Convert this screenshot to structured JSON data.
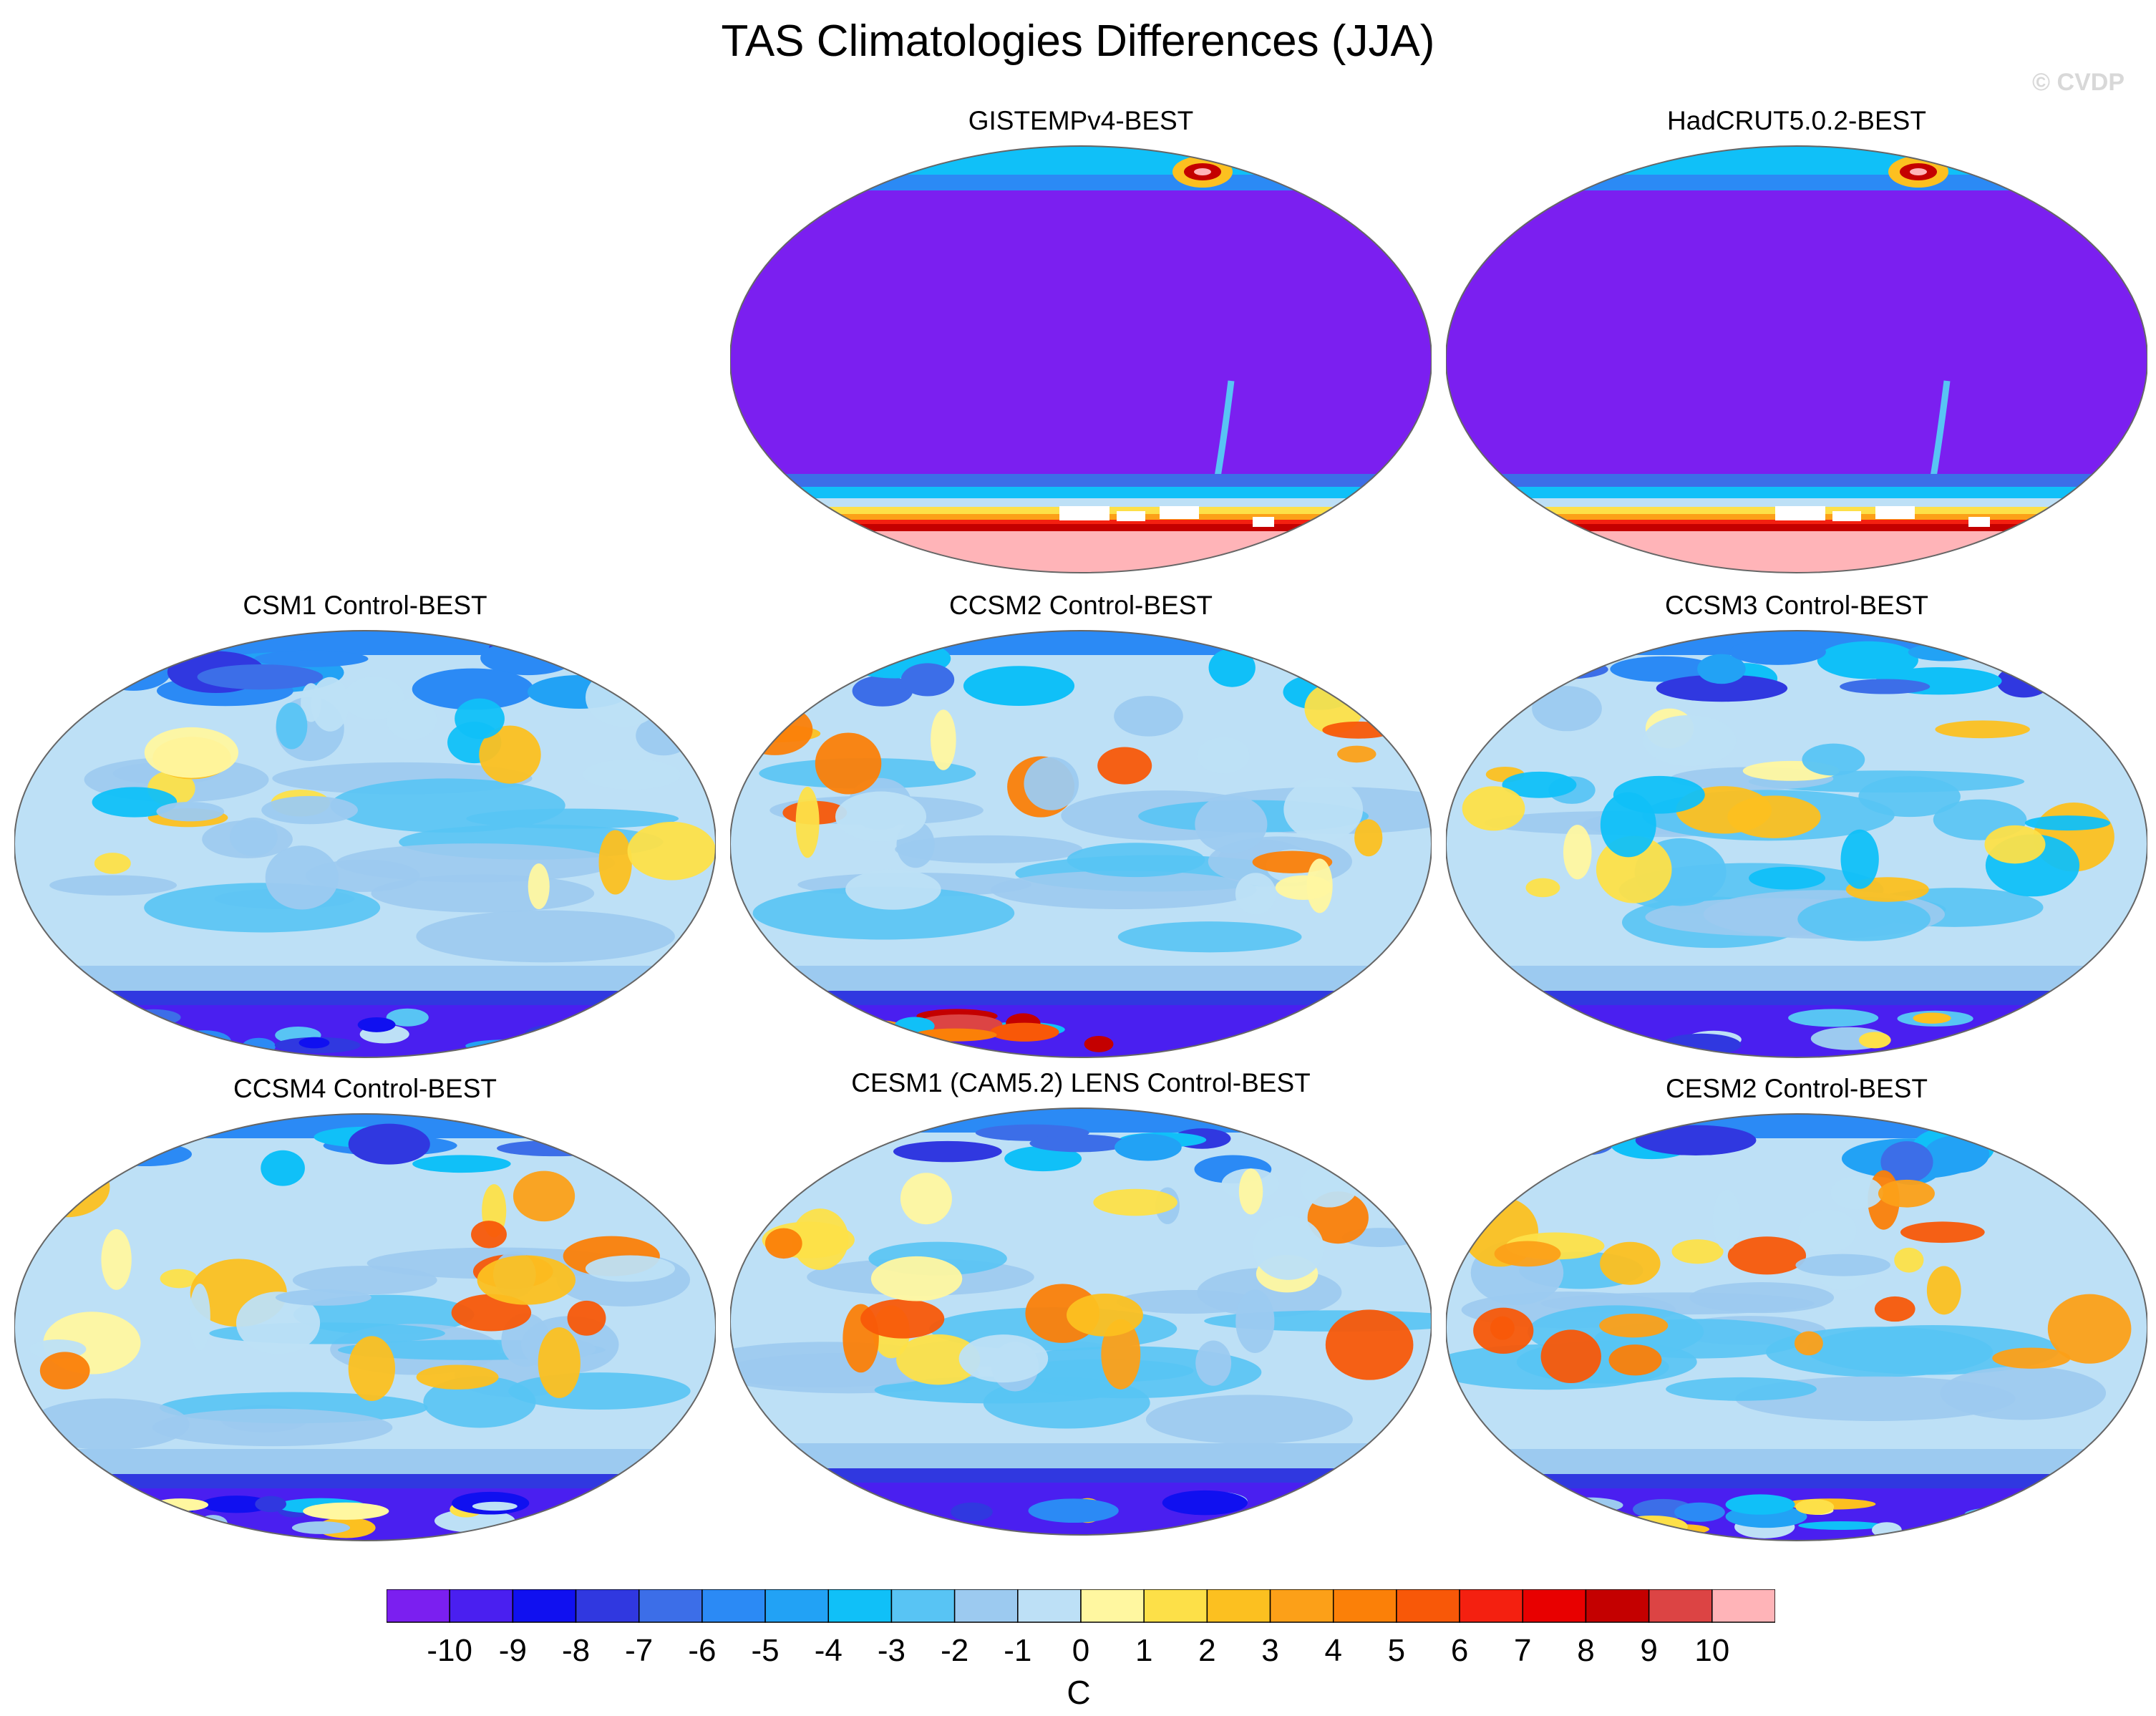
{
  "figure": {
    "title": "TAS Climatologies Differences (JJA)",
    "watermark": "© CVDP"
  },
  "chart_data": {
    "type": "heatmap",
    "title": "TAS Climatologies Differences (JJA)",
    "variable": "TAS",
    "season": "JJA",
    "units": "C",
    "projection": "Robinson global map",
    "colorbar": {
      "label": "C",
      "levels": [
        -10,
        -9,
        -8,
        -7,
        -6,
        -5,
        -4,
        -3,
        -2,
        -1,
        0,
        1,
        2,
        3,
        4,
        5,
        6,
        7,
        8,
        9,
        10
      ],
      "tick_labels": [
        "-10",
        "-9",
        "-8",
        "-7",
        "-6",
        "-5",
        "-4",
        "-3",
        "-2",
        "-1",
        "0",
        "1",
        "2",
        "3",
        "4",
        "5",
        "6",
        "7",
        "8",
        "9",
        "10"
      ],
      "colors": [
        "#7b1ff0",
        "#4a1ff0",
        "#1010f0",
        "#3038e0",
        "#3c6ee8",
        "#2b8af5",
        "#22a2f5",
        "#10c0f8",
        "#58c4f4",
        "#9ccaf0",
        "#bde0f6",
        "#fff7a0",
        "#fde048",
        "#fcc020",
        "#fca018",
        "#fb8008",
        "#f85808",
        "#f42010",
        "#e80000",
        "#c40000",
        "#dc4444",
        "#ffb4b8"
      ]
    },
    "panels": [
      {
        "id": "gistemp",
        "title": "GISTEMPv4-BEST",
        "pattern": "obs"
      },
      {
        "id": "hadcrut",
        "title": "HadCRUT5.0.2-BEST",
        "pattern": "obs"
      },
      {
        "id": "csm1",
        "title": "CSM1 Control-BEST",
        "pattern": "model"
      },
      {
        "id": "ccsm2",
        "title": "CCSM2 Control-BEST",
        "pattern": "model"
      },
      {
        "id": "ccsm3",
        "title": "CCSM3 Control-BEST",
        "pattern": "model"
      },
      {
        "id": "ccsm4",
        "title": "CCSM4 Control-BEST",
        "pattern": "model"
      },
      {
        "id": "cesm1",
        "title": "CESM1 (CAM5.2) LENS Control-BEST",
        "pattern": "model"
      },
      {
        "id": "cesm2",
        "title": "CESM2 Control-BEST",
        "pattern": "model"
      }
    ]
  }
}
